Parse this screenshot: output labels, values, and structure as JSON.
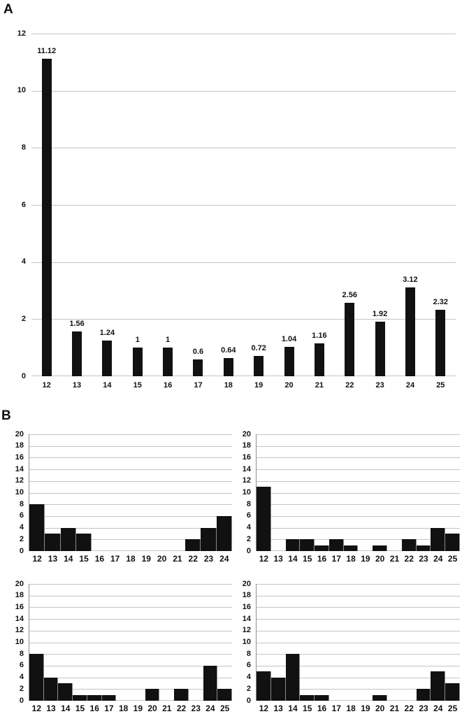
{
  "figure": {
    "panel_a_label": "A",
    "panel_b_label": "B",
    "background": "#ffffff"
  },
  "colors": {
    "bar": "#111111",
    "gridline": "#c4c4c4",
    "axis_line": "#8f8f8f",
    "text": "#111111"
  },
  "chart_data": [
    {
      "id": "A",
      "panel": "A",
      "type": "bar",
      "title": "",
      "xlabel": "",
      "ylabel": "",
      "categories": [
        "12",
        "13",
        "14",
        "15",
        "16",
        "17",
        "18",
        "19",
        "20",
        "21",
        "22",
        "23",
        "24",
        "25"
      ],
      "values": [
        11.12,
        1.56,
        1.24,
        1,
        1,
        0.6,
        0.64,
        0.72,
        1.04,
        1.16,
        2.56,
        1.92,
        3.12,
        2.32
      ],
      "bar_labels": [
        "11.12",
        "1.56",
        "1.24",
        "1",
        "1",
        "0.6",
        "0.64",
        "0.72",
        "1.04",
        "1.16",
        "2.56",
        "1.92",
        "3.12",
        "2.32"
      ],
      "ylim": [
        0,
        12
      ],
      "yticks": [
        12,
        10,
        8,
        6,
        4,
        2,
        0
      ],
      "grid": true,
      "legend": null
    },
    {
      "id": "B1",
      "panel": "B",
      "position": "top-left",
      "type": "histogram",
      "title": "",
      "categories": [
        "12",
        "13",
        "14",
        "15",
        "16",
        "17",
        "18",
        "19",
        "20",
        "21",
        "22",
        "23",
        "24"
      ],
      "values": [
        8,
        3,
        4,
        3,
        0,
        0,
        0,
        0,
        0,
        0,
        2,
        4,
        6
      ],
      "ylim": [
        0,
        20
      ],
      "yticks": [
        20,
        18,
        16,
        14,
        12,
        10,
        8,
        6,
        4,
        2,
        0
      ],
      "grid": true,
      "legend": null
    },
    {
      "id": "B2",
      "panel": "B",
      "position": "top-right",
      "type": "histogram",
      "title": "",
      "categories": [
        "12",
        "13",
        "14",
        "15",
        "16",
        "17",
        "18",
        "19",
        "20",
        "21",
        "22",
        "23",
        "24",
        "25"
      ],
      "values": [
        11,
        0,
        2,
        2,
        1,
        2,
        1,
        0,
        1,
        0,
        2,
        1,
        4,
        3
      ],
      "ylim": [
        0,
        20
      ],
      "yticks": [
        20,
        18,
        16,
        14,
        12,
        10,
        8,
        6,
        4,
        2,
        0
      ],
      "grid": true,
      "legend": null
    },
    {
      "id": "B3",
      "panel": "B",
      "position": "bottom-left",
      "type": "histogram",
      "title": "",
      "categories": [
        "12",
        "13",
        "14",
        "15",
        "16",
        "17",
        "18",
        "19",
        "20",
        "21",
        "22",
        "23",
        "24",
        "25"
      ],
      "values": [
        8,
        4,
        3,
        1,
        1,
        1,
        0,
        0,
        2,
        0,
        2,
        0,
        6,
        2
      ],
      "ylim": [
        0,
        20
      ],
      "yticks": [
        20,
        18,
        16,
        14,
        12,
        10,
        8,
        6,
        4,
        2,
        0
      ],
      "grid": true,
      "legend": null
    },
    {
      "id": "B4",
      "panel": "B",
      "position": "bottom-right",
      "type": "histogram",
      "title": "",
      "categories": [
        "12",
        "13",
        "14",
        "15",
        "16",
        "17",
        "18",
        "19",
        "20",
        "21",
        "22",
        "23",
        "24",
        "25"
      ],
      "values": [
        5,
        4,
        8,
        1,
        1,
        0,
        0,
        0,
        1,
        0,
        0,
        2,
        5,
        3
      ],
      "ylim": [
        0,
        20
      ],
      "yticks": [
        20,
        18,
        16,
        14,
        12,
        10,
        8,
        6,
        4,
        2,
        0
      ],
      "grid": true,
      "legend": null
    }
  ]
}
